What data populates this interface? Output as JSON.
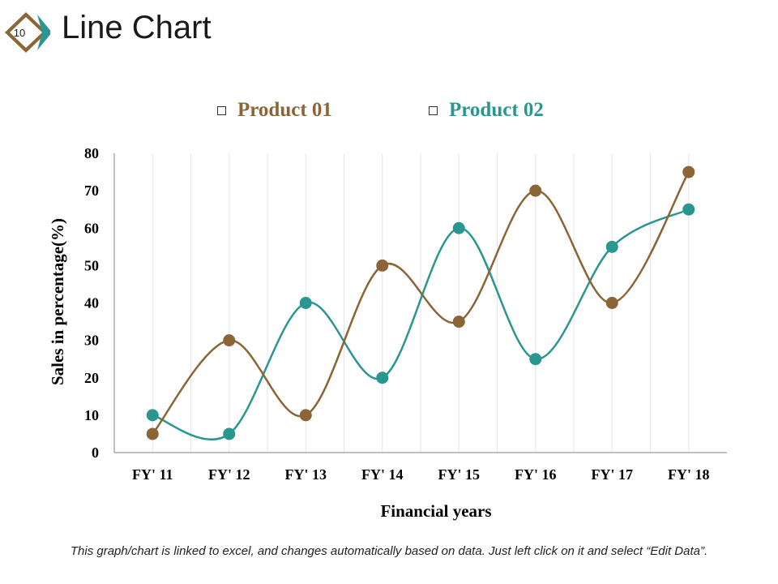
{
  "page": {
    "slide_number": "10",
    "title": "Line Chart",
    "footnote": "This graph/chart is linked to excel, and changes automatically based on data. Just left click on it and select “Edit Data”."
  },
  "colors": {
    "product01": "#8B6535",
    "product02": "#2A9690",
    "badge_fill": "#8B6535",
    "badge_accent": "#2A9690",
    "grid": "#e6e6e6",
    "axis": "#808080"
  },
  "chart_data": {
    "type": "line",
    "xlabel": "Financial years",
    "ylabel": "Sales in percentage(%)",
    "categories": [
      "FY' 11",
      "FY' 12",
      "FY' 13",
      "FY' 14",
      "FY' 15",
      "FY' 16",
      "FY' 17",
      "FY' 18"
    ],
    "ylim": [
      0,
      80
    ],
    "yticks": [
      "0",
      "10",
      "20",
      "30",
      "40",
      "50",
      "60",
      "70",
      "80"
    ],
    "series": [
      {
        "name": "Product 01",
        "values": [
          5,
          30,
          10,
          50,
          35,
          70,
          40,
          75
        ]
      },
      {
        "name": "Product 02",
        "values": [
          10,
          5,
          40,
          20,
          60,
          25,
          55,
          65
        ]
      }
    ],
    "smooth": true,
    "grid": "vertical",
    "legend": "top-center"
  }
}
